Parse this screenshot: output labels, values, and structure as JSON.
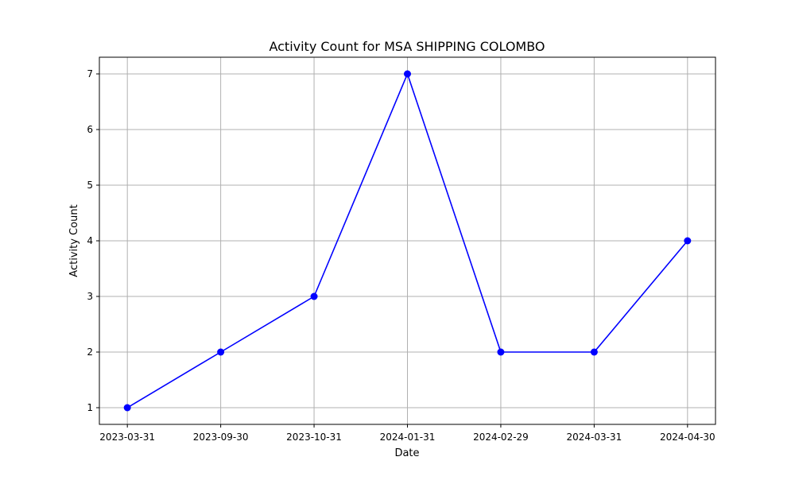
{
  "chart_data": {
    "type": "line",
    "title": "Activity Count for MSA SHIPPING COLOMBO",
    "xlabel": "Date",
    "ylabel": "Activity Count",
    "categories": [
      "2023-03-31",
      "2023-09-30",
      "2023-10-31",
      "2024-01-31",
      "2024-02-29",
      "2024-03-31",
      "2024-04-30"
    ],
    "series": [
      {
        "values": [
          1,
          2,
          3,
          7,
          2,
          2,
          4
        ],
        "color": "#0000ff",
        "marker": "circle"
      }
    ],
    "ylim": [
      0.7,
      7.3
    ],
    "yticks": [
      1,
      2,
      3,
      4,
      5,
      6,
      7
    ],
    "grid": true,
    "gridColor": "#b0b0b0",
    "legend": "none"
  }
}
